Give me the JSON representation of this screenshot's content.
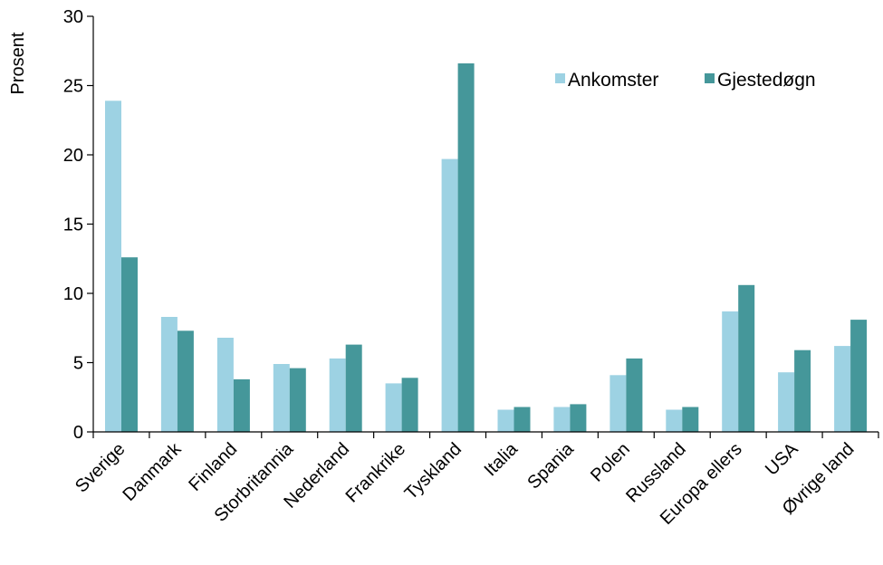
{
  "chart_data": {
    "type": "bar",
    "title": "",
    "xlabel": "",
    "ylabel": "Prosent",
    "ylim": [
      0,
      30
    ],
    "yticks": [
      "0",
      "5",
      "10",
      "15",
      "20",
      "25",
      "30"
    ],
    "grid": false,
    "legend_position": "top-right",
    "categories": [
      "Sverige",
      "Danmark",
      "Finland",
      "Storbritannia",
      "Nederland",
      "Frankrike",
      "Tyskland",
      "Italia",
      "Spania",
      "Polen",
      "Russland",
      "Europa ellers",
      "USA",
      "Øvrige land"
    ],
    "series": [
      {
        "name": "Ankomster",
        "color": "#9dd2e3",
        "values": [
          23.9,
          8.3,
          6.8,
          4.9,
          5.3,
          3.5,
          19.7,
          1.6,
          1.8,
          4.1,
          1.6,
          8.7,
          4.3,
          6.2
        ]
      },
      {
        "name": "Gjestedøgn",
        "color": "#45979a",
        "values": [
          12.6,
          7.3,
          3.8,
          4.6,
          6.3,
          3.9,
          26.6,
          1.8,
          2.0,
          5.3,
          1.8,
          10.6,
          5.9,
          8.1
        ]
      }
    ]
  }
}
